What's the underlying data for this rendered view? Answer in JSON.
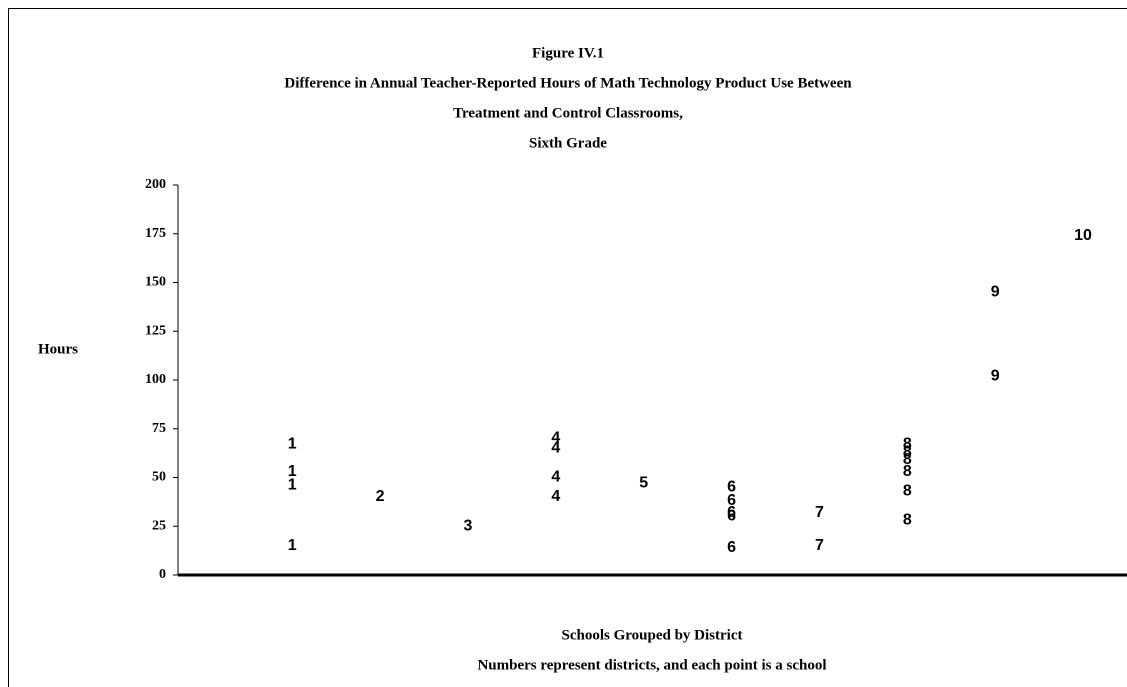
{
  "chart_data": {
    "type": "scatter",
    "title": [
      "Figure IV.1",
      "Difference in Annual Teacher-Reported Hours of Math Technology Product Use Between",
      "Treatment and Control Classrooms,",
      "Sixth Grade"
    ],
    "ylabel": "Hours",
    "xlabel": "Schools Grouped by District",
    "note": "Numbers represent districts, and each point is a school",
    "x": [
      1,
      1,
      1,
      1,
      2,
      3,
      4,
      4,
      4,
      4,
      5,
      6,
      6,
      6,
      6,
      6,
      7,
      7,
      8,
      8,
      8,
      8,
      8,
      8,
      9,
      9,
      10
    ],
    "values": [
      67,
      53,
      46,
      15,
      40,
      25,
      70,
      65,
      50,
      40,
      47,
      45,
      38,
      32,
      30,
      14,
      32,
      15,
      67,
      63,
      59,
      53,
      43,
      28,
      145,
      102,
      174
    ],
    "color": "#000000",
    "xlim": [
      -0.3,
      10.5
    ],
    "ylim": [
      0,
      200
    ],
    "yticks": [
      0,
      25,
      50,
      75,
      100,
      125,
      150,
      175,
      200
    ]
  }
}
